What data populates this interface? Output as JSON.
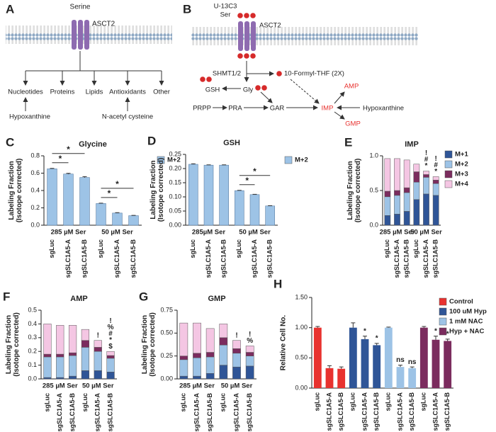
{
  "panel_a": {
    "letter": "A",
    "input": "Serine",
    "transporter": "ASCT2",
    "outputs": [
      "Nucleotides",
      "Proteins",
      "Lipids",
      "Antioxidants",
      "Other"
    ],
    "supplements": [
      "Hypoxanthine",
      "N-acetyl cysteine"
    ]
  },
  "panel_b": {
    "letter": "B",
    "tracer": [
      "U-13C3",
      "Ser"
    ],
    "transporter": "ASCT2",
    "enzyme": "SHMT1/2",
    "nodes": {
      "formyl": "10-Formyl-THF (2X)",
      "gsh": "GSH",
      "gly": "Gly",
      "prpp": "PRPP",
      "pra": "PRA",
      "gar": "GAR",
      "imp": "IMP",
      "amp": "AMP",
      "gmp": "GMP",
      "hyp": "Hypoxanthine"
    }
  },
  "chart_data": [
    {
      "panel": "C",
      "type": "bar",
      "title": "Glycine",
      "ylabel": [
        "Labeling Fraction",
        "(Isotope corrected)"
      ],
      "categories": [
        "sgLuc",
        "sgSLC1A5-A",
        "sgSLC1A5-B",
        "sgLuc",
        "sgSLC1A5-A",
        "sgSLC1A5-B"
      ],
      "group_labels": [
        "285 µM Ser",
        "50 µM Ser"
      ],
      "series": [
        {
          "name": "M+2",
          "color": "#9dc3e6",
          "values": [
            0.65,
            0.59,
            0.55,
            0.25,
            0.14,
            0.11
          ],
          "errors": [
            0.005,
            0.008,
            0.01,
            0.004,
            0.005,
            0.003
          ]
        }
      ],
      "annotations": [
        null,
        "*",
        "*",
        null,
        "*",
        "*"
      ],
      "ylim": [
        0,
        0.8
      ],
      "yticks": [
        {
          "value": 0,
          "label": "0.0"
        },
        0.2,
        0.4,
        0.6,
        0.8
      ],
      "legend": "right"
    },
    {
      "panel": "D",
      "type": "bar",
      "title": "GSH",
      "ylabel": [
        "Labeling Fraction",
        "(Isotope corrected)"
      ],
      "categories": [
        "sgLuc",
        "sgSLC1A5-A",
        "sgSLC1A5-B",
        "sgLuc",
        "sgSLC1A5-A",
        "sgSLC1A5-B"
      ],
      "group_labels": [
        "285µM Ser",
        "50 µM Ser"
      ],
      "series": [
        {
          "name": "M+2",
          "color": "#9dc3e6",
          "values": [
            0.215,
            0.212,
            0.212,
            0.122,
            0.108,
            0.068
          ],
          "errors": [
            0.002,
            0.001,
            0.001,
            0.001,
            0.001,
            0.001
          ]
        }
      ],
      "annotations": [
        null,
        null,
        null,
        null,
        "*",
        "*"
      ],
      "ylim": [
        0,
        0.25
      ],
      "yticks": [
        {
          "value": 0,
          "label": "0.00"
        },
        0.05,
        {
          "value": 0.1,
          "label": "0.10"
        },
        0.15,
        {
          "value": 0.2,
          "label": "0.20"
        },
        0.25
      ],
      "legend": "right"
    },
    {
      "panel": "E",
      "type": "stacked_bar",
      "title": "IMP",
      "ylabel": [
        "Labeling Fraction",
        "(Isotope corrected)"
      ],
      "categories": [
        "sgLuc",
        "sgSLC1A5-A",
        "sgSLC1A5-B",
        "sgLuc",
        "sgSLC1A5-A",
        "sgSLC1A5-B"
      ],
      "group_labels": [
        "285 µM Ser",
        "50 µM Ser"
      ],
      "series": [
        {
          "name": "M+1",
          "color": "#2f5597",
          "values": [
            0.14,
            0.16,
            0.2,
            0.37,
            0.45,
            0.43
          ]
        },
        {
          "name": "M+2",
          "color": "#9dc3e6",
          "values": [
            0.27,
            0.27,
            0.27,
            0.25,
            0.24,
            0.17
          ]
        },
        {
          "name": "M+3",
          "color": "#7b2c5e",
          "values": [
            0.08,
            0.07,
            0.07,
            0.15,
            0.04,
            0.05
          ]
        },
        {
          "name": "M+4",
          "color": "#f4c6e3",
          "values": [
            0.47,
            0.46,
            0.4,
            0.11,
            0.05,
            0.05
          ]
        }
      ],
      "annotations": [
        null,
        null,
        null,
        null,
        [
          "!",
          "#",
          "*"
        ],
        [
          "!",
          "#",
          "*"
        ]
      ],
      "ylim": [
        0,
        1
      ],
      "yticks": [
        {
          "value": 0,
          "label": "0.0"
        },
        0.5,
        {
          "value": 1,
          "label": "1.0"
        }
      ],
      "legend": "right"
    },
    {
      "panel": "F",
      "type": "stacked_bar",
      "title": "AMP",
      "ylabel": [
        "Labeling Fraction",
        "(Isotope corrected)"
      ],
      "categories": [
        "sgLuc",
        "sgSLC1A5-A",
        "sgSLC1A5-B",
        "sgLuc",
        "sgSLC1A5-A",
        "sgSLC1A5-B"
      ],
      "group_labels": [
        "285 µM Ser",
        "50 µM Ser"
      ],
      "series": [
        {
          "name": "M+1",
          "color": "#2f5597",
          "values": [
            0.01,
            0.01,
            0.02,
            0.06,
            0.06,
            0.05
          ]
        },
        {
          "name": "M+2",
          "color": "#9dc3e6",
          "values": [
            0.15,
            0.15,
            0.15,
            0.17,
            0.14,
            0.1
          ]
        },
        {
          "name": "M+3",
          "color": "#7b2c5e",
          "values": [
            0.02,
            0.02,
            0.02,
            0.05,
            0.03,
            0.02
          ]
        },
        {
          "name": "M+4",
          "color": "#f4c6e3",
          "values": [
            0.22,
            0.21,
            0.2,
            0.08,
            0.05,
            0.03
          ]
        }
      ],
      "annotations": [
        null,
        null,
        null,
        null,
        [
          "!"
        ],
        [
          "!",
          "%",
          "#",
          "*",
          "$"
        ]
      ],
      "ylim": [
        0,
        0.5
      ],
      "yticks": [
        {
          "value": 0,
          "label": "0.0"
        },
        0.1,
        0.2,
        0.3,
        0.4,
        0.5
      ]
    },
    {
      "panel": "G",
      "type": "stacked_bar",
      "title": "GMP",
      "ylabel": [
        "Labeling Fraction",
        "(Isotope corrected)"
      ],
      "categories": [
        "sgLuc",
        "sgSLC1A5-A",
        "sgSLC1A5-B",
        "sgLuc",
        "sgSLC1A5-A",
        "sgSLC1A5-B"
      ],
      "group_labels": [
        "285 µM Ser",
        "50 µM Ser"
      ],
      "series": [
        {
          "name": "M+1",
          "color": "#2f5597",
          "values": [
            0.03,
            0.03,
            0.06,
            0.15,
            0.13,
            0.14
          ]
        },
        {
          "name": "M+2",
          "color": "#9dc3e6",
          "values": [
            0.18,
            0.2,
            0.18,
            0.22,
            0.15,
            0.11
          ]
        },
        {
          "name": "M+3",
          "color": "#7b2c5e",
          "values": [
            0.04,
            0.05,
            0.05,
            0.08,
            0.05,
            0.04
          ]
        },
        {
          "name": "M+4",
          "color": "#f4c6e3",
          "values": [
            0.36,
            0.33,
            0.26,
            0.15,
            0.09,
            0.07
          ]
        }
      ],
      "annotations": [
        null,
        null,
        null,
        null,
        [
          "!"
        ],
        [
          "!",
          "%"
        ]
      ],
      "ylim": [
        0,
        0.75
      ],
      "yticks": [
        {
          "value": 0,
          "label": "0.00"
        },
        0.25,
        {
          "value": 0.5,
          "label": "0.50"
        },
        0.75
      ]
    },
    {
      "panel": "H",
      "type": "bar_groups",
      "ylabel": [
        "Relative Cell No."
      ],
      "categories": [
        "sgLuc",
        "sgSLC1A5-A",
        "sgSLC1A5-B"
      ],
      "series": [
        {
          "name": "Control",
          "color": "#e8322f",
          "values": [
            1,
            0.33,
            0.32
          ],
          "errors": [
            0.02,
            0.04,
            0.03
          ],
          "annotations": [
            null,
            null,
            null
          ]
        },
        {
          "name": "100 uM Hyp",
          "color": "#2f5597",
          "values": [
            1,
            0.81,
            0.71
          ],
          "errors": [
            0.08,
            0.05,
            0.03
          ],
          "annotations": [
            null,
            "*",
            "*"
          ]
        },
        {
          "name": "1 mM NAC",
          "color": "#9dc3e6",
          "values": [
            1,
            0.35,
            0.33
          ],
          "errors": [
            0.01,
            0.03,
            0.02
          ],
          "annotations": [
            null,
            "ns",
            "ns"
          ]
        },
        {
          "name": "Hyp + NAC",
          "color": "#7b2c5e",
          "values": [
            1,
            0.8,
            0.78
          ],
          "errors": [
            0.02,
            0.06,
            0.03
          ],
          "annotations": [
            null,
            "*",
            "*"
          ]
        }
      ],
      "ylim": [
        0,
        1.5
      ],
      "yticks": [
        {
          "value": 0,
          "label": "0.00"
        },
        {
          "value": 0.5,
          "label": "0.50"
        },
        {
          "value": 1,
          "label": "1.00"
        },
        {
          "value": 1.5,
          "label": "1.50"
        }
      ],
      "legend": "right"
    }
  ]
}
